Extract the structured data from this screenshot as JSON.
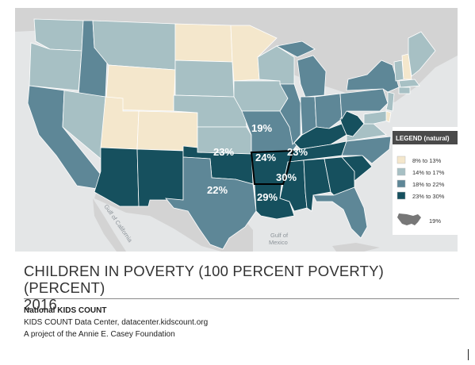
{
  "colors": {
    "ocean": "#e4e6e7",
    "land_outside": "#d3d3d3",
    "bin_8_13": "#f4e7cc",
    "bin_14_17": "#a7c0c4",
    "bin_18_22": "#5e8797",
    "bin_23_30": "#16505e",
    "highlight_border": "#000000"
  },
  "map": {
    "labels": [
      {
        "id": "missouri",
        "text": "19%"
      },
      {
        "id": "oklahoma",
        "text": "23%"
      },
      {
        "id": "arkansas",
        "text": "24%"
      },
      {
        "id": "kentucky",
        "text": "23%"
      },
      {
        "id": "mississippi",
        "text": "30%"
      },
      {
        "id": "louisiana",
        "text": "29%"
      },
      {
        "id": "texas",
        "text": "22%"
      }
    ],
    "water_labels": {
      "gulf_of_california": "Gulf of California",
      "gulf_of_mexico_1": "Gulf of",
      "gulf_of_mexico_2": "Mexico"
    }
  },
  "legend": {
    "title": "LEGEND (natural)",
    "items": [
      {
        "label": "8% to 13%",
        "color": "#f4e7cc"
      },
      {
        "label": "14% to 17%",
        "color": "#a7c0c4"
      },
      {
        "label": "18% to 22%",
        "color": "#5e8797"
      },
      {
        "label": "23% to 30%",
        "color": "#16505e"
      }
    ],
    "us_value": "19%"
  },
  "title": {
    "line1": "CHILDREN IN POVERTY (100 PERCENT POVERTY) (PERCENT)",
    "line2": "2016"
  },
  "footer": {
    "org": "National KIDS COUNT",
    "source": "KIDS COUNT Data Center, datacenter.kidscount.org",
    "project": "A project of the Annie E. Casey Foundation"
  }
}
